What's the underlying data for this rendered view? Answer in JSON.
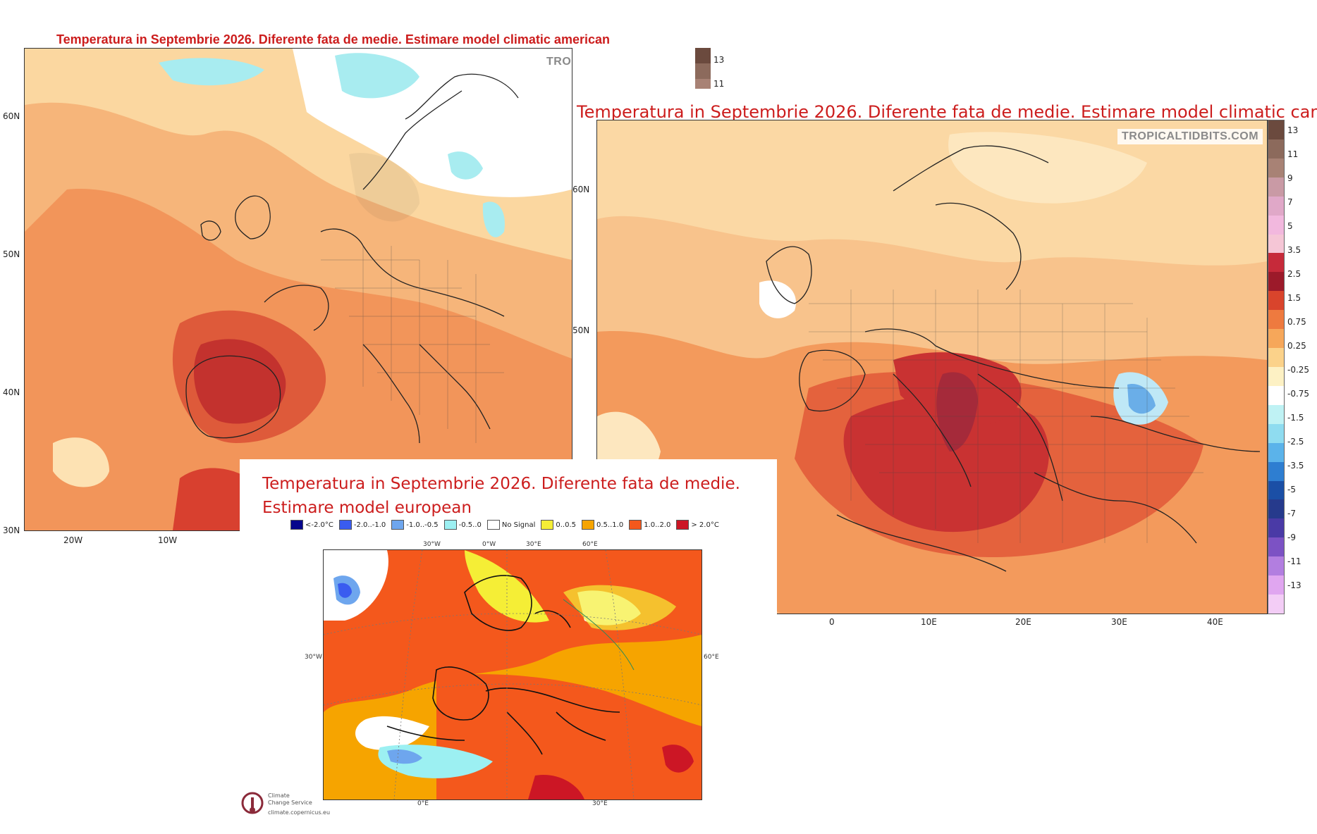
{
  "american": {
    "title": "Temperatura in Septembrie 2026. Diferente fata de medie. Estimare model climatic american",
    "watermark": "TROPICALTIDBITS.COM",
    "lat_ticks": [
      "60N",
      "50N",
      "40N",
      "30N"
    ],
    "lon_ticks": [
      "20W",
      "10W"
    ],
    "colorbar_labels": [
      "13",
      "11"
    ]
  },
  "canadian": {
    "title": "Temperatura in Septembrie 2026. Diferente fata de medie. Estimare model climatic canadian",
    "watermark": "TROPICALTIDBITS.COM",
    "lat_ticks": [
      "60N",
      "50N"
    ],
    "lon_ticks": [
      "0",
      "10E",
      "20E",
      "30E",
      "40E"
    ],
    "colorbar_labels": [
      "13",
      "11",
      "9",
      "7",
      "5",
      "3.5",
      "2.5",
      "1.5",
      "0.75",
      "0.25",
      "-0.25",
      "-0.75",
      "-1.5",
      "-2.5",
      "-3.5",
      "-5",
      "-7",
      "-9",
      "-11",
      "-13"
    ],
    "colorbar_colors": [
      "#6b4a3e",
      "#8c6a5c",
      "#a88275",
      "#c99aa5",
      "#e0a8c8",
      "#f2b8de",
      "#f5c6d6",
      "#c62a3a",
      "#9c1a2a",
      "#d9442c",
      "#ee7a3f",
      "#f6a75a",
      "#fbd28a",
      "#fdf1c4",
      "#ffffff",
      "#bff2f4",
      "#8fdcf0",
      "#5bb3ea",
      "#2e7ed1",
      "#1b4fa6",
      "#263a8c",
      "#4a3aa6",
      "#7c52c4",
      "#b27ee0",
      "#e0a6f0",
      "#f3cdf6"
    ]
  },
  "european": {
    "title_line1": "Temperatura in Septembrie 2026. Diferente fata de medie.",
    "title_line2": "Estimare model european",
    "legend": [
      {
        "label": "<-2.0°C",
        "color": "#06068c"
      },
      {
        "label": "-2.0..-1.0",
        "color": "#3a5cf0"
      },
      {
        "label": "-1.0..-0.5",
        "color": "#6ea6ee"
      },
      {
        "label": "-0.5..0",
        "color": "#9cf0f2"
      },
      {
        "label": "No Signal",
        "color": "#ffffff"
      },
      {
        "label": "0..0.5",
        "color": "#f5ee36"
      },
      {
        "label": "0.5..1.0",
        "color": "#f6a400"
      },
      {
        "label": "1.0..2.0",
        "color": "#f4581c"
      },
      {
        "label": "> 2.0°C",
        "color": "#cc1625"
      }
    ],
    "grid_labels": {
      "top": [
        "30°W",
        "0°W",
        "30°E",
        "60°E"
      ],
      "left": "30°W",
      "right": "60°E",
      "bottom": [
        "0°E",
        "30°E"
      ]
    },
    "logo_text_line1": "Climate",
    "logo_text_line2": "Change Service",
    "logo_url_text": "climate.copernicus.eu"
  }
}
